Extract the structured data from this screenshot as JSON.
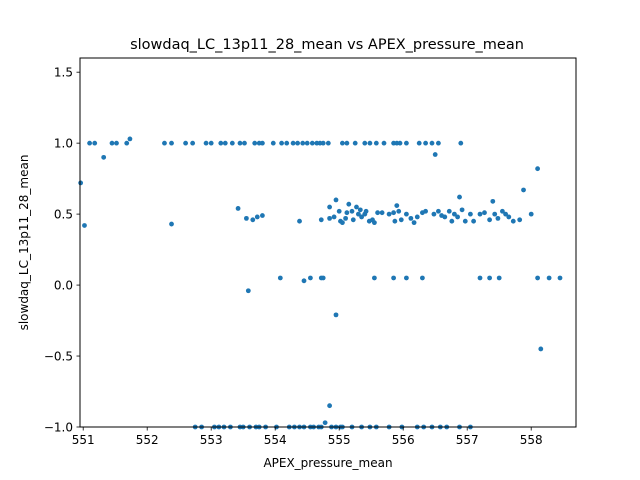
{
  "chart_data": {
    "type": "scatter",
    "title": "slowdaq_LC_13p11_28_mean vs APEX_pressure_mean",
    "xlabel": "APEX_pressure_mean",
    "ylabel": "slowdaq_LC_13p11_28_mean",
    "xlim": [
      550.95,
      558.7
    ],
    "ylim": [
      -1.0,
      1.6
    ],
    "x_ticks": [
      "551",
      "552",
      "553",
      "554",
      "555",
      "556",
      "557",
      "558"
    ],
    "y_ticks": [
      "−1.0",
      "−0.5",
      "0.0",
      "0.5",
      "1.0",
      "1.5"
    ],
    "x_tick_values": [
      551,
      552,
      553,
      554,
      555,
      556,
      557,
      558
    ],
    "y_tick_values": [
      -1.0,
      -0.5,
      0.0,
      0.5,
      1.0,
      1.5
    ],
    "grid": false,
    "marker_color": "#1f77b4",
    "points": [
      [
        550.96,
        0.72
      ],
      [
        551.02,
        0.42
      ],
      [
        551.1,
        1.0
      ],
      [
        551.18,
        1.0
      ],
      [
        551.32,
        0.9
      ],
      [
        551.45,
        1.0
      ],
      [
        551.52,
        1.0
      ],
      [
        551.68,
        1.0
      ],
      [
        551.73,
        1.03
      ],
      [
        552.27,
        1.0
      ],
      [
        552.38,
        1.0
      ],
      [
        552.38,
        0.43
      ],
      [
        552.6,
        1.0
      ],
      [
        552.71,
        1.0
      ],
      [
        552.92,
        1.0
      ],
      [
        553.0,
        1.0
      ],
      [
        553.15,
        1.0
      ],
      [
        553.22,
        1.0
      ],
      [
        553.33,
        1.0
      ],
      [
        553.45,
        1.0
      ],
      [
        553.52,
        1.0
      ],
      [
        553.68,
        1.0
      ],
      [
        553.75,
        1.0
      ],
      [
        553.8,
        1.0
      ],
      [
        553.97,
        1.0
      ],
      [
        554.1,
        1.0
      ],
      [
        554.18,
        1.0
      ],
      [
        554.28,
        1.0
      ],
      [
        554.35,
        1.0
      ],
      [
        554.43,
        1.0
      ],
      [
        554.5,
        1.0
      ],
      [
        554.58,
        1.0
      ],
      [
        554.65,
        1.0
      ],
      [
        554.7,
        1.0
      ],
      [
        554.75,
        1.0
      ],
      [
        554.83,
        1.0
      ],
      [
        555.05,
        1.0
      ],
      [
        555.12,
        1.0
      ],
      [
        555.25,
        1.0
      ],
      [
        555.4,
        1.0
      ],
      [
        555.48,
        1.0
      ],
      [
        555.58,
        1.0
      ],
      [
        555.7,
        1.0
      ],
      [
        555.85,
        1.0
      ],
      [
        555.9,
        1.0
      ],
      [
        555.95,
        1.0
      ],
      [
        556.05,
        1.0
      ],
      [
        556.25,
        1.0
      ],
      [
        556.35,
        1.0
      ],
      [
        556.45,
        1.0
      ],
      [
        556.55,
        1.0
      ],
      [
        556.9,
        1.0
      ],
      [
        556.5,
        0.92
      ],
      [
        553.42,
        0.54
      ],
      [
        553.55,
        0.47
      ],
      [
        553.65,
        0.46
      ],
      [
        553.72,
        0.48
      ],
      [
        553.8,
        0.49
      ],
      [
        554.38,
        0.45
      ],
      [
        554.72,
        0.46
      ],
      [
        554.85,
        0.55
      ],
      [
        554.85,
        0.47
      ],
      [
        554.92,
        0.48
      ],
      [
        554.95,
        0.6
      ],
      [
        555.0,
        0.52
      ],
      [
        555.02,
        0.45
      ],
      [
        555.05,
        0.44
      ],
      [
        555.1,
        0.47
      ],
      [
        555.12,
        0.51
      ],
      [
        555.15,
        0.57
      ],
      [
        555.2,
        0.52
      ],
      [
        555.22,
        0.46
      ],
      [
        555.27,
        0.55
      ],
      [
        555.3,
        0.5
      ],
      [
        555.33,
        0.53
      ],
      [
        555.35,
        0.48
      ],
      [
        555.4,
        0.5
      ],
      [
        555.42,
        0.52
      ],
      [
        555.47,
        0.45
      ],
      [
        555.52,
        0.46
      ],
      [
        555.55,
        0.44
      ],
      [
        555.6,
        0.51
      ],
      [
        555.67,
        0.51
      ],
      [
        555.78,
        0.5
      ],
      [
        555.85,
        0.51
      ],
      [
        555.87,
        0.45
      ],
      [
        555.9,
        0.56
      ],
      [
        555.93,
        0.52
      ],
      [
        555.97,
        0.46
      ],
      [
        556.05,
        0.5
      ],
      [
        556.12,
        0.47
      ],
      [
        556.17,
        0.44
      ],
      [
        556.22,
        0.48
      ],
      [
        556.3,
        0.51
      ],
      [
        556.35,
        0.52
      ],
      [
        556.48,
        0.5
      ],
      [
        556.55,
        0.52
      ],
      [
        556.6,
        0.49
      ],
      [
        556.65,
        0.48
      ],
      [
        556.72,
        0.52
      ],
      [
        556.76,
        0.45
      ],
      [
        556.8,
        0.5
      ],
      [
        556.85,
        0.48
      ],
      [
        556.88,
        0.62
      ],
      [
        556.92,
        0.53
      ],
      [
        556.97,
        0.45
      ],
      [
        557.05,
        0.5
      ],
      [
        557.1,
        0.45
      ],
      [
        557.2,
        0.5
      ],
      [
        557.27,
        0.51
      ],
      [
        557.35,
        0.46
      ],
      [
        557.4,
        0.59
      ],
      [
        557.43,
        0.5
      ],
      [
        557.48,
        0.47
      ],
      [
        557.55,
        0.52
      ],
      [
        557.6,
        0.5
      ],
      [
        557.65,
        0.48
      ],
      [
        557.72,
        0.45
      ],
      [
        557.82,
        0.46
      ],
      [
        557.88,
        0.67
      ],
      [
        558.0,
        0.5
      ],
      [
        558.1,
        0.82
      ],
      [
        554.08,
        0.05
      ],
      [
        554.45,
        0.03
      ],
      [
        554.55,
        0.05
      ],
      [
        554.72,
        0.05
      ],
      [
        554.75,
        0.05
      ],
      [
        555.55,
        0.05
      ],
      [
        555.85,
        0.05
      ],
      [
        556.05,
        0.05
      ],
      [
        556.3,
        0.05
      ],
      [
        557.2,
        0.05
      ],
      [
        557.35,
        0.05
      ],
      [
        557.5,
        0.05
      ],
      [
        558.1,
        0.05
      ],
      [
        558.28,
        0.05
      ],
      [
        558.45,
        0.05
      ],
      [
        553.58,
        -0.04
      ],
      [
        554.95,
        -0.21
      ],
      [
        558.15,
        -0.45
      ],
      [
        554.85,
        -0.85
      ],
      [
        554.78,
        -0.97
      ],
      [
        552.75,
        -1.0
      ],
      [
        552.85,
        -1.0
      ],
      [
        553.05,
        -1.0
      ],
      [
        553.12,
        -1.0
      ],
      [
        553.2,
        -1.0
      ],
      [
        553.3,
        -1.0
      ],
      [
        553.45,
        -1.0
      ],
      [
        553.5,
        -1.0
      ],
      [
        553.6,
        -1.0
      ],
      [
        553.7,
        -1.0
      ],
      [
        553.75,
        -1.0
      ],
      [
        553.85,
        -1.0
      ],
      [
        554.02,
        -1.0
      ],
      [
        554.22,
        -1.0
      ],
      [
        554.3,
        -1.0
      ],
      [
        554.38,
        -1.0
      ],
      [
        554.45,
        -1.0
      ],
      [
        554.55,
        -1.0
      ],
      [
        554.6,
        -1.0
      ],
      [
        554.68,
        -1.0
      ],
      [
        554.72,
        -1.0
      ],
      [
        554.88,
        -1.0
      ],
      [
        554.95,
        -1.0
      ],
      [
        555.02,
        -1.0
      ],
      [
        555.05,
        -1.0
      ],
      [
        555.2,
        -1.0
      ],
      [
        555.35,
        -1.0
      ],
      [
        555.48,
        -1.0
      ],
      [
        555.58,
        -1.0
      ],
      [
        555.78,
        -1.0
      ],
      [
        555.98,
        -1.0
      ],
      [
        556.22,
        -1.0
      ],
      [
        556.32,
        -1.0
      ],
      [
        556.45,
        -1.0
      ],
      [
        556.58,
        -1.0
      ],
      [
        556.68,
        -1.0
      ],
      [
        556.88,
        -1.0
      ],
      [
        557.05,
        -1.0
      ]
    ]
  }
}
